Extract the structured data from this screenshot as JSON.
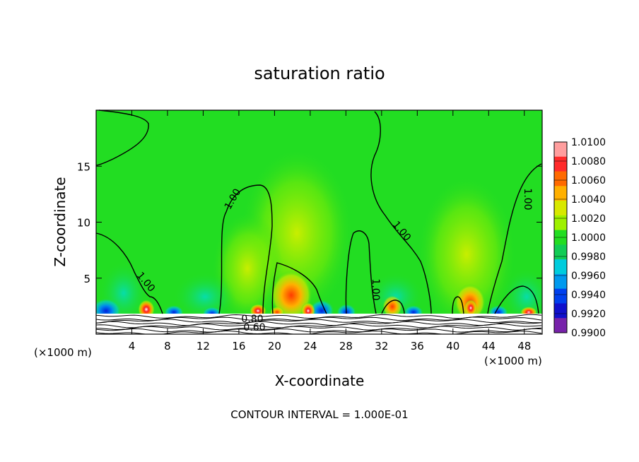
{
  "chart_data": {
    "type": "heatmap",
    "title": "saturation ratio",
    "xlabel": "X-coordinate",
    "ylabel": "Z-coordinate",
    "x_unit": "(×1000 m)",
    "xlim": [
      0,
      50
    ],
    "ylim": [
      0,
      20
    ],
    "x_ticks": [
      4,
      8,
      12,
      16,
      20,
      24,
      28,
      32,
      36,
      40,
      44,
      48
    ],
    "y_ticks": [
      5,
      10,
      15
    ],
    "colorbar": {
      "levels": [
        "1.0100",
        "1.0080",
        "1.0060",
        "1.0040",
        "1.0020",
        "1.0000",
        "0.9980",
        "0.9960",
        "0.9940",
        "0.9920",
        "0.9900"
      ],
      "colors": [
        "#ff9e9e",
        "#ff2a2a",
        "#ff6a00",
        "#ffb000",
        "#d8e800",
        "#9ef000",
        "#22dd22",
        "#11cc55",
        "#00ccdd",
        "#0099ee",
        "#0040ee",
        "#1010cc",
        "#7722aa"
      ]
    },
    "contour_labels": [
      "1.00",
      "1.00",
      "1.00",
      "1.00",
      "1.00",
      "0.80",
      "0.60"
    ],
    "footnote": "CONTOUR INTERVAL = 1.000E-01",
    "grid": false,
    "legend_position": "right"
  }
}
